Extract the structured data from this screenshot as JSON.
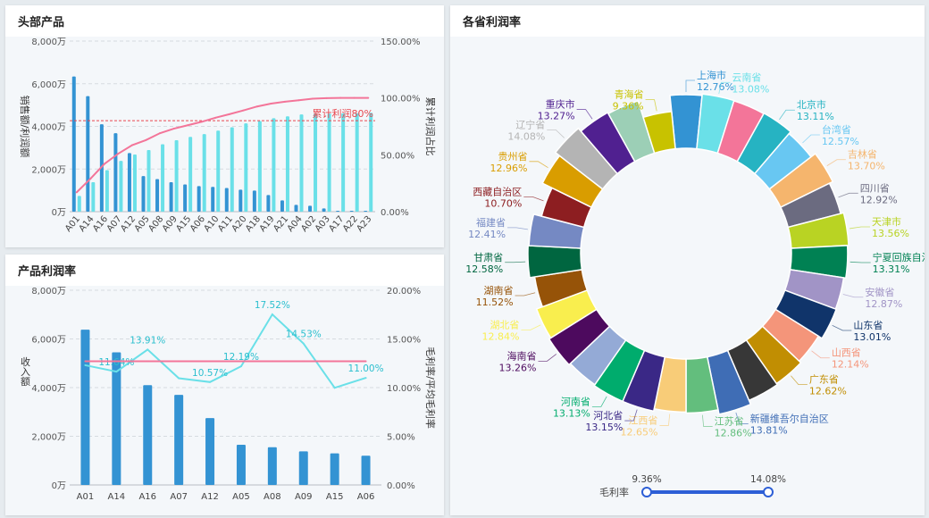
{
  "panels": {
    "top_products_title": "头部产品",
    "product_margin_title": "产品利润率",
    "province_margin_title": "各省利润率"
  },
  "chart_data": [
    {
      "type": "bar",
      "title": "头部产品",
      "categories": [
        "A01",
        "A14",
        "A16",
        "A07",
        "A12",
        "A05",
        "A08",
        "A09",
        "A15",
        "A06",
        "A10",
        "A11",
        "A20",
        "A18",
        "A19",
        "A21",
        "A04",
        "A02",
        "A03",
        "A17",
        "A22",
        "A23"
      ],
      "ylabel": "销售额/利润额",
      "y2label": "累计利润占比",
      "ylim": [
        0,
        8000
      ],
      "y2lim": [
        0,
        150
      ],
      "yticks": [
        "0万",
        "2,000万",
        "4,000万",
        "6,000万",
        "8,000万"
      ],
      "y2ticks": [
        "0.00%",
        "50.00%",
        "100.00%",
        "150.00%"
      ],
      "series": [
        {
          "type": "bar",
          "color": "#3393d3",
          "values": [
            6340,
            5420,
            4100,
            3680,
            2750,
            1670,
            1530,
            1380,
            1280,
            1200,
            1160,
            1110,
            1030,
            990,
            780,
            530,
            320,
            280,
            150,
            40,
            40,
            40
          ]
        },
        {
          "type": "bar",
          "color": "#6ae0e8",
          "values": [
            740,
            1380,
            1950,
            2380,
            2680,
            2890,
            3160,
            3350,
            3510,
            3640,
            3800,
            3960,
            4140,
            4250,
            4380,
            4470,
            4560,
            4590,
            4600,
            4610,
            4620,
            4640
          ]
        },
        {
          "type": "line",
          "axis": "right",
          "color": "#f37599",
          "values": [
            17,
            29,
            42,
            51,
            58.5,
            63,
            69,
            73,
            76,
            79,
            82.6,
            85.7,
            89,
            92.5,
            95,
            96.7,
            98,
            99.3,
            99.8,
            100,
            100,
            100
          ]
        }
      ],
      "reference_line": {
        "value": 80,
        "axis": "right",
        "label": "累计利润80%",
        "color": "#e8474f"
      },
      "grid": true
    },
    {
      "type": "bar",
      "title": "产品利润率",
      "categories": [
        "A01",
        "A14",
        "A16",
        "A07",
        "A12",
        "A05",
        "A08",
        "A09",
        "A15",
        "A06"
      ],
      "ylabel": "收入额",
      "y2label": "毛利率/平均毛利率",
      "ylim": [
        0,
        8000
      ],
      "y2lim": [
        0,
        20
      ],
      "yticks": [
        "0万",
        "2,000万",
        "4,000万",
        "6,000万",
        "8,000万"
      ],
      "y2ticks": [
        "0.00%",
        "5.00%",
        "10.00%",
        "15.00%",
        "20.00%"
      ],
      "series": [
        {
          "type": "bar",
          "color": "#3393d3",
          "values": [
            6380,
            5450,
            4100,
            3700,
            2750,
            1650,
            1550,
            1380,
            1300,
            1200
          ]
        },
        {
          "type": "line",
          "axis": "right",
          "color": "#6ae0e8",
          "values": [
            12.3,
            11.64,
            13.91,
            10.96,
            10.57,
            12.19,
            17.52,
            14.53,
            9.98,
            11.0
          ],
          "labels": [
            "",
            "11.64%",
            "13.91%",
            "",
            "10.57%",
            "12.19%",
            "17.52%",
            "14.53%",
            "",
            "11.00%"
          ]
        },
        {
          "type": "line",
          "axis": "right",
          "color": "#f37599",
          "values": [
            12.71,
            12.71,
            12.71,
            12.71,
            12.71,
            12.71,
            12.71,
            12.71,
            12.71,
            12.71
          ]
        }
      ],
      "grid": true
    },
    {
      "type": "pie",
      "subtype": "rose",
      "title": "各省利润率",
      "slices": [
        {
          "name": "上海市",
          "value": 12.76,
          "label": "12.76%",
          "color": "#3393d3"
        },
        {
          "name": "云南省",
          "value": 13.08,
          "label": "13.08%",
          "color": "#6ae0e8"
        },
        {
          "name": "",
          "value": 13.0,
          "label": "",
          "color": "#f37599"
        },
        {
          "name": "北京市",
          "value": 13.11,
          "label": "13.11%",
          "color": "#26b3c2"
        },
        {
          "name": "台湾省",
          "value": 12.57,
          "label": "12.57%",
          "color": "#68c7f2"
        },
        {
          "name": "吉林省",
          "value": 13.7,
          "label": "13.70%",
          "color": "#f5b56d"
        },
        {
          "name": "四川省",
          "value": 12.92,
          "label": "12.92%",
          "color": "#6b6b80"
        },
        {
          "name": "天津市",
          "value": 13.56,
          "label": "13.56%",
          "color": "#b9d323"
        },
        {
          "name": "宁夏回族自治区",
          "value": 13.31,
          "label": "13.31%",
          "color": "#008153"
        },
        {
          "name": "安徽省",
          "value": 12.87,
          "label": "12.87%",
          "color": "#a194c6"
        },
        {
          "name": "山东省",
          "value": 13.01,
          "label": "13.01%",
          "color": "#10346a"
        },
        {
          "name": "山西省",
          "value": 12.14,
          "label": "12.14%",
          "color": "#f4957a"
        },
        {
          "name": "广东省",
          "value": 12.62,
          "label": "12.62%",
          "color": "#c18e02"
        },
        {
          "name": "",
          "value": 12.9,
          "label": "",
          "color": "#373737"
        },
        {
          "name": "新疆维吾尔自治区",
          "value": 13.81,
          "label": "13.81%",
          "color": "#3f6db5"
        },
        {
          "name": "江苏省",
          "value": 12.86,
          "label": "12.86%",
          "color": "#63be7d"
        },
        {
          "name": "江西省",
          "value": 12.65,
          "label": "12.65%",
          "color": "#f8cc78"
        },
        {
          "name": "河北省",
          "value": 13.15,
          "label": "13.15%",
          "color": "#3a2886"
        },
        {
          "name": "河南省",
          "value": 13.13,
          "label": "13.13%",
          "color": "#00ac6d"
        },
        {
          "name": "",
          "value": 12.9,
          "label": "",
          "color": "#94aad6"
        },
        {
          "name": "海南省",
          "value": 13.26,
          "label": "13.26%",
          "color": "#4d0a5e"
        },
        {
          "name": "湖北省",
          "value": 12.84,
          "label": "12.84%",
          "color": "#f9ee4e"
        },
        {
          "name": "湖南省",
          "value": 11.52,
          "label": "11.52%",
          "color": "#965308"
        },
        {
          "name": "甘肃省",
          "value": 12.58,
          "label": "12.58%",
          "color": "#006640"
        },
        {
          "name": "福建省",
          "value": 12.41,
          "label": "12.41%",
          "color": "#7589c3"
        },
        {
          "name": "西藏自治区",
          "value": 10.7,
          "label": "10.70%",
          "color": "#8d1e21"
        },
        {
          "name": "贵州省",
          "value": 12.96,
          "label": "12.96%",
          "color": "#d99d00"
        },
        {
          "name": "辽宁省",
          "value": 14.08,
          "label": "14.08%",
          "color": "#b4b4b4"
        },
        {
          "name": "重庆市",
          "value": 13.27,
          "label": "13.27%",
          "color": "#502090"
        },
        {
          "name": "",
          "value": 13.0,
          "label": "",
          "color": "#9ccfb6"
        },
        {
          "name": "青海省",
          "value": 9.36,
          "label": "9.36%",
          "color": "#c8c200"
        }
      ]
    }
  ],
  "range_filter": {
    "label": "毛利率",
    "min_label": "9.36%",
    "max_label": "14.08%",
    "min": 9.36,
    "max": 14.08,
    "color": "#2d5fd6"
  }
}
